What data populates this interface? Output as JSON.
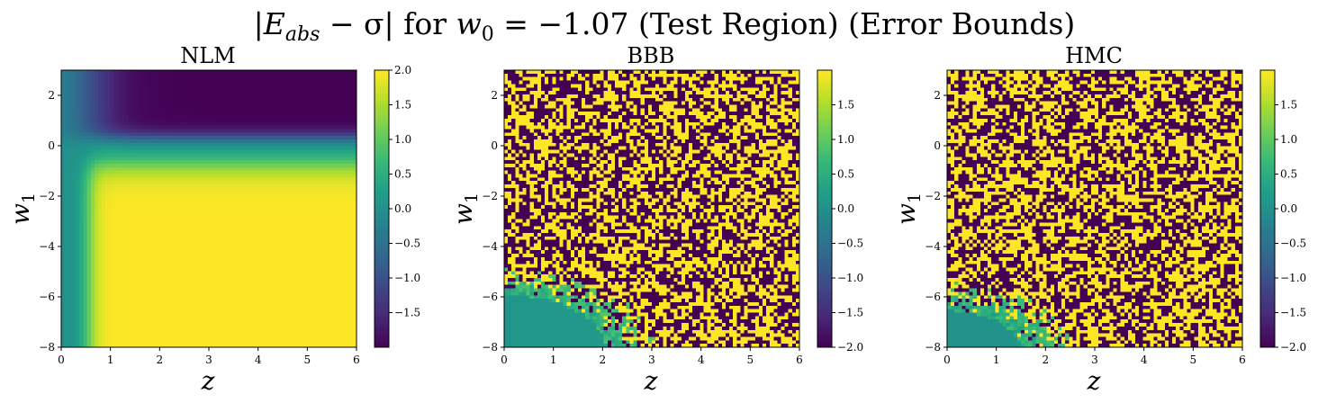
{
  "figure": {
    "suptitle": "|E_abs − σ| for w_0 = −1.07 (Test Region) (Error Bounds)",
    "suptitle_parts": {
      "bar_open": "|",
      "E": "E",
      "abs": "abs",
      "minus_sigma": " − σ",
      "bar_close": "|",
      "for": " for ",
      "w": "w",
      "w_sub": "0",
      "eq_value": " = −1.07 ",
      "tail": "(Test Region) (Error Bounds)"
    }
  },
  "colors": {
    "colormap": "viridis",
    "viridis_stops": [
      "#440154",
      "#482878",
      "#3e4989",
      "#31688e",
      "#26828e",
      "#1f9e89",
      "#35b779",
      "#6ece58",
      "#b5de2b",
      "#fde725"
    ]
  },
  "chart_data": [
    {
      "type": "heatmap",
      "title": "NLM",
      "xlabel": "z",
      "ylabel_main": "w",
      "ylabel_sub": "1",
      "xlim": [
        0,
        6
      ],
      "ylim": [
        -8,
        3
      ],
      "xticks": [
        "0",
        "1",
        "2",
        "3",
        "4",
        "5",
        "6"
      ],
      "yticks": [
        "2",
        "0",
        "−2",
        "−4",
        "−6",
        "−8"
      ],
      "colorbar_range": [
        -2.0,
        2.0
      ],
      "colorbar_ticks": [
        "2.0",
        "1.5",
        "1.0",
        "0.5",
        "0.0",
        "−0.5",
        "−1.0",
        "−1.5"
      ],
      "pattern": "smooth: values near 2.0 in the lower region for z above ~0.7 and w1 below ~-1; near -2.0 in the top band for w1 above ~0.5 and z above ~1; near 0 along the left edge"
    },
    {
      "type": "heatmap",
      "title": "BBB",
      "xlabel": "z",
      "ylabel_main": "w",
      "ylabel_sub": "1",
      "xlim": [
        0,
        6
      ],
      "ylim": [
        -8,
        3
      ],
      "xticks": [
        "0",
        "1",
        "2",
        "3",
        "4",
        "5",
        "6"
      ],
      "yticks": [
        "2",
        "0",
        "−2",
        "−4",
        "−6",
        "−8"
      ],
      "colorbar_range": [
        -2.0,
        2.0
      ],
      "colorbar_ticks": [
        "1.5",
        "1.0",
        "0.5",
        "0.0",
        "−0.5",
        "−1.0",
        "−1.5",
        "−2.0"
      ],
      "pattern": "background near 0; darker (-1.5 to -2.0) at top right; noisy alternating -2.0 / 2.0 pixels in the lower right region beyond radius ~2.3 from (0, -8)"
    },
    {
      "type": "heatmap",
      "title": "HMC",
      "xlabel": "z",
      "ylabel_main": "w",
      "ylabel_sub": "1",
      "xlim": [
        0,
        6
      ],
      "ylim": [
        -8,
        3
      ],
      "xticks": [
        "0",
        "1",
        "2",
        "3",
        "4",
        "5",
        "6"
      ],
      "yticks": [
        "2",
        "0",
        "−2",
        "−4",
        "−6",
        "−8"
      ],
      "colorbar_range": [
        -2.0,
        2.0
      ],
      "colorbar_ticks": [
        "1.5",
        "1.0",
        "0.5",
        "0.0",
        "−0.5",
        "−1.0",
        "−1.5",
        "−2.0"
      ],
      "pattern": "background near 0 (slightly negative toward top right); noisy alternating -2.0 / 2.0 pixels in the lower right region beyond radius ~1.8 from (0, -8)"
    }
  ]
}
